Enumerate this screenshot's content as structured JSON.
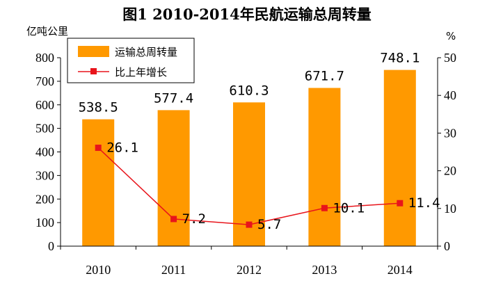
{
  "chart_data": {
    "type": "bar+line",
    "title": "图1 2010-2014年民航运输总周转量",
    "categories": [
      "2010",
      "2011",
      "2012",
      "2013",
      "2014"
    ],
    "left_axis": {
      "label": "亿吨公里",
      "ylim": [
        0,
        800
      ],
      "ticks": [
        "0",
        "100",
        "200",
        "300",
        "400",
        "500",
        "600",
        "700",
        "800"
      ]
    },
    "right_axis": {
      "label": "%",
      "ylim": [
        0,
        50
      ],
      "ticks": [
        "0",
        "10",
        "20",
        "30",
        "40",
        "50"
      ]
    },
    "series": [
      {
        "name": "运输总周转量",
        "type": "bar",
        "axis": "left",
        "color": "#FF9900",
        "values": [
          538.5,
          577.4,
          610.3,
          671.7,
          748.1
        ],
        "labels": [
          "538.5",
          "577.4",
          "610.3",
          "671.7",
          "748.1"
        ]
      },
      {
        "name": "比上年增长",
        "type": "line",
        "axis": "right",
        "color": "#E8141B",
        "values": [
          26.1,
          7.2,
          5.7,
          10.1,
          11.4
        ],
        "labels": [
          "26.1",
          "7.2",
          "5.7",
          "10.1",
          "11.4"
        ]
      }
    ],
    "legend": "top-left",
    "grid": false
  }
}
